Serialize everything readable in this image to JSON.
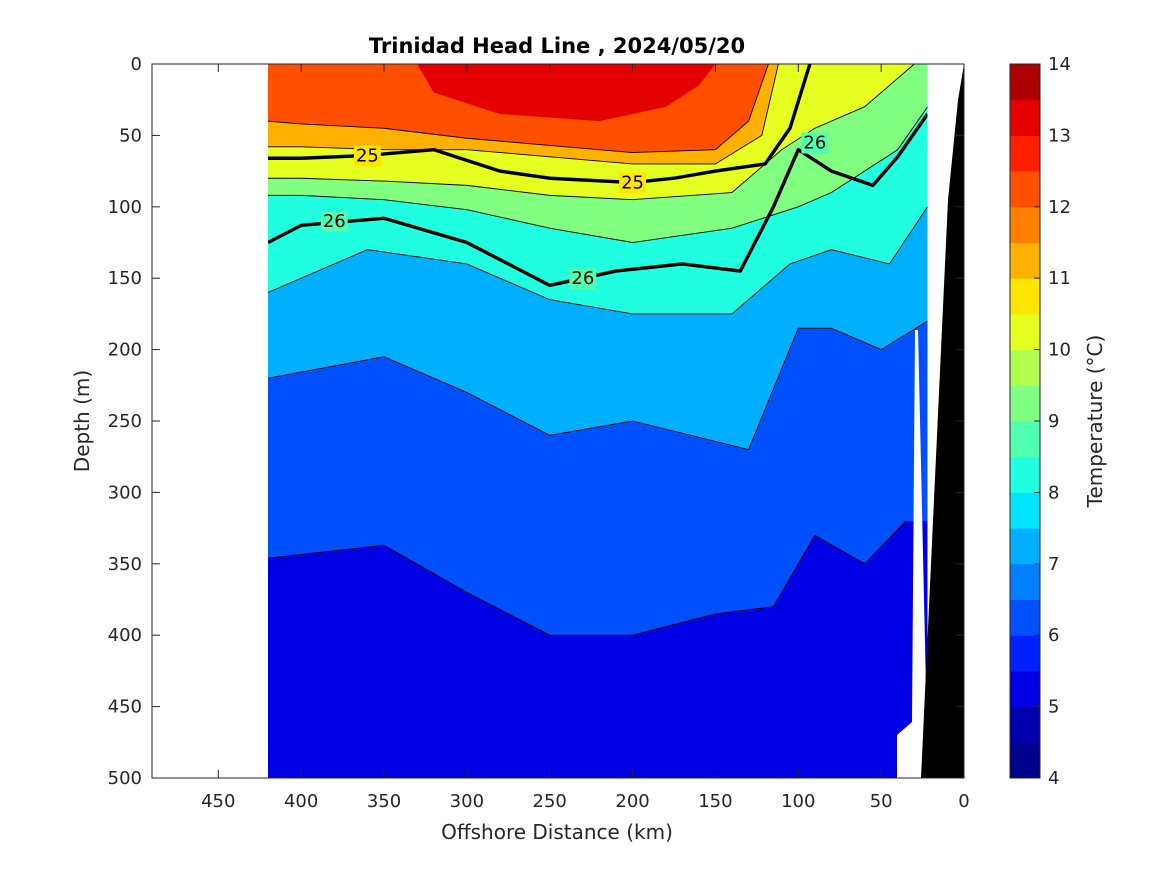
{
  "chart_data": {
    "type": "heatmap",
    "title": "Trinidad Head Line , 2024/05/20",
    "xlabel": "Offshore Distance (km)",
    "ylabel": "Depth (m)",
    "xlim": [
      490,
      0
    ],
    "ylim": [
      0,
      500
    ],
    "x_reversed": true,
    "y_reversed": true,
    "x_ticks": [
      "450",
      "400",
      "350",
      "300",
      "250",
      "200",
      "150",
      "100",
      "50",
      "0"
    ],
    "x_tick_values": [
      450,
      400,
      350,
      300,
      250,
      200,
      150,
      100,
      50,
      0
    ],
    "y_ticks": [
      "0",
      "50",
      "100",
      "150",
      "200",
      "250",
      "300",
      "350",
      "400",
      "450",
      "500"
    ],
    "y_tick_values": [
      0,
      50,
      100,
      150,
      200,
      250,
      300,
      350,
      400,
      450,
      500
    ],
    "data_extent_km": [
      420,
      22
    ],
    "colorbar": {
      "label": "Temperature (°C)",
      "range": [
        4,
        14
      ],
      "ticks": [
        "4",
        "5",
        "6",
        "7",
        "8",
        "9",
        "10",
        "11",
        "12",
        "13",
        "14"
      ],
      "tick_values": [
        4,
        5,
        6,
        7,
        8,
        9,
        10,
        11,
        12,
        13,
        14
      ],
      "colors": [
        "#00008f",
        "#0000af",
        "#0000e5",
        "#0020ff",
        "#0050ff",
        "#0080ff",
        "#00b0ff",
        "#00e5ff",
        "#20ffe0",
        "#50ffaf",
        "#80ff80",
        "#b0ff50",
        "#e5ff20",
        "#ffe500",
        "#ffb000",
        "#ff8000",
        "#ff5000",
        "#ff2000",
        "#e50000",
        "#af0000"
      ]
    },
    "isotherms": [
      {
        "temp": 11.5,
        "points": [
          [
            118,
            0
          ],
          [
            130,
            40
          ],
          [
            150,
            60
          ],
          [
            200,
            62
          ],
          [
            250,
            57
          ],
          [
            300,
            52
          ],
          [
            350,
            45
          ],
          [
            400,
            42
          ],
          [
            420,
            40
          ]
        ]
      },
      {
        "temp": 10.5,
        "points": [
          [
            112,
            0
          ],
          [
            122,
            50
          ],
          [
            150,
            70
          ],
          [
            200,
            70
          ],
          [
            250,
            65
          ],
          [
            300,
            60
          ],
          [
            350,
            60
          ],
          [
            400,
            58
          ],
          [
            420,
            58
          ]
        ]
      },
      {
        "temp": 9.5,
        "points": [
          [
            30,
            0
          ],
          [
            60,
            30
          ],
          [
            90,
            45
          ],
          [
            110,
            60
          ],
          [
            140,
            90
          ],
          [
            200,
            95
          ],
          [
            250,
            92
          ],
          [
            300,
            85
          ],
          [
            350,
            82
          ],
          [
            400,
            80
          ],
          [
            420,
            80
          ]
        ]
      },
      {
        "temp": 8.5,
        "points": [
          [
            22,
            30
          ],
          [
            40,
            60
          ],
          [
            80,
            90
          ],
          [
            100,
            100
          ],
          [
            140,
            115
          ],
          [
            200,
            125
          ],
          [
            250,
            115
          ],
          [
            300,
            102
          ],
          [
            350,
            95
          ],
          [
            400,
            92
          ],
          [
            420,
            92
          ]
        ]
      },
      {
        "temp": 7.5,
        "points": [
          [
            22,
            100
          ],
          [
            45,
            140
          ],
          [
            80,
            130
          ],
          [
            105,
            140
          ],
          [
            140,
            175
          ],
          [
            200,
            175
          ],
          [
            250,
            165
          ],
          [
            300,
            140
          ],
          [
            360,
            130
          ],
          [
            420,
            160
          ]
        ]
      },
      {
        "temp": 6.5,
        "points": [
          [
            22,
            180
          ],
          [
            50,
            200
          ],
          [
            80,
            185
          ],
          [
            100,
            185
          ],
          [
            130,
            270
          ],
          [
            200,
            250
          ],
          [
            250,
            260
          ],
          [
            300,
            230
          ],
          [
            350,
            205
          ],
          [
            420,
            220
          ]
        ]
      },
      {
        "temp": 5.5,
        "points": [
          [
            35,
            320
          ],
          [
            60,
            350
          ],
          [
            90,
            330
          ],
          [
            115,
            380
          ],
          [
            150,
            385
          ],
          [
            200,
            400
          ],
          [
            250,
            400
          ],
          [
            300,
            370
          ],
          [
            350,
            337
          ],
          [
            420,
            346
          ]
        ]
      }
    ],
    "sigma_contours": [
      {
        "label": "25",
        "points": [
          [
            93,
            0
          ],
          [
            105,
            45
          ],
          [
            120,
            70
          ],
          [
            150,
            75
          ],
          [
            175,
            80
          ],
          [
            200,
            83
          ],
          [
            250,
            80
          ],
          [
            280,
            75
          ],
          [
            320,
            60
          ],
          [
            360,
            64
          ],
          [
            400,
            66
          ],
          [
            420,
            66
          ]
        ]
      },
      {
        "label": "26",
        "points": [
          [
            22,
            35
          ],
          [
            40,
            65
          ],
          [
            55,
            85
          ],
          [
            80,
            75
          ],
          [
            100,
            60
          ],
          [
            115,
            100
          ],
          [
            135,
            145
          ],
          [
            170,
            140
          ],
          [
            210,
            145
          ],
          [
            250,
            155
          ],
          [
            300,
            125
          ],
          [
            350,
            108
          ],
          [
            400,
            113
          ],
          [
            420,
            125
          ]
        ]
      }
    ]
  }
}
